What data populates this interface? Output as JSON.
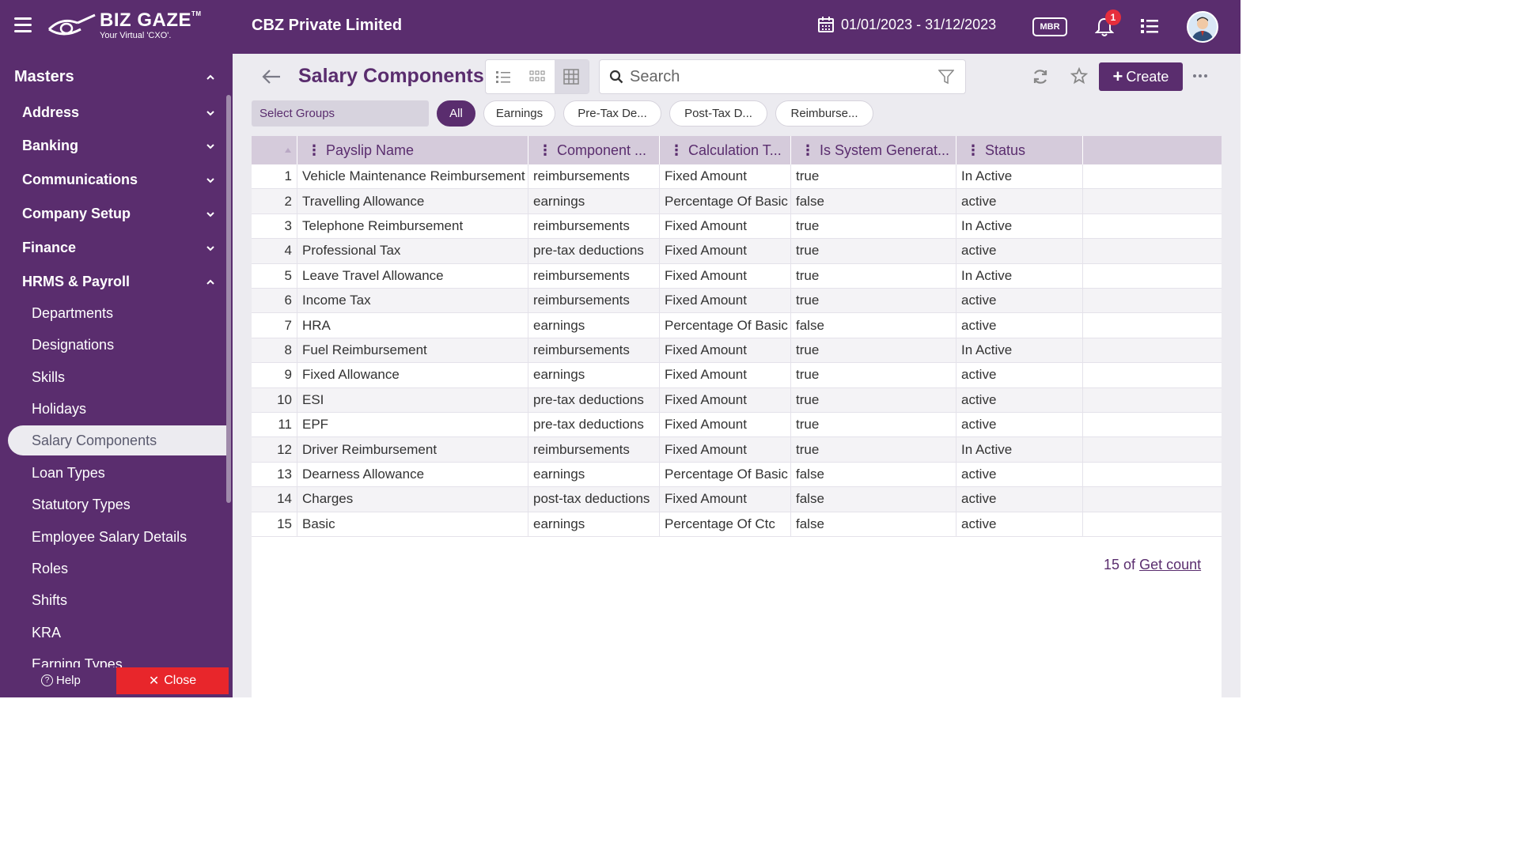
{
  "header": {
    "logo_name": "BIZ GAZE",
    "logo_tm": "TM",
    "logo_tagline": "Your Virtual 'CXO'.",
    "company": "CBZ Private Limited",
    "date_range": "01/01/2023 - 31/12/2023",
    "mbr_label": "MBR",
    "notification_count": "1"
  },
  "sidebar": {
    "section": "Masters",
    "groups": [
      "Address",
      "Banking",
      "Communications",
      "Company Setup",
      "Finance",
      "HRMS & Payroll"
    ],
    "items": [
      "Departments",
      "Designations",
      "Skills",
      "Holidays",
      "Salary Components",
      "Loan Types",
      "Statutory Types",
      "Employee Salary Details",
      "Roles",
      "Shifts",
      "KRA",
      "Earning Types"
    ],
    "active_item": "Salary Components",
    "help_label": "Help",
    "close_label": "Close"
  },
  "page": {
    "title": "Salary Components",
    "search_placeholder": "Search",
    "create_label": "Create",
    "select_groups": "Select Groups",
    "chips": [
      "All",
      "Earnings",
      "Pre-Tax De...",
      "Post-Tax D...",
      "Reimburse..."
    ],
    "active_chip": "All"
  },
  "table": {
    "columns": [
      "Payslip Name",
      "Component ...",
      "Calculation T...",
      "Is System Generat...",
      "Status"
    ],
    "rows": [
      [
        "1",
        "Vehicle Maintenance Reimbursement",
        "reimbursements",
        "Fixed Amount",
        "true",
        "In Active"
      ],
      [
        "2",
        "Travelling Allowance",
        "earnings",
        "Percentage Of Basic",
        "false",
        "active"
      ],
      [
        "3",
        "Telephone Reimbursement",
        "reimbursements",
        "Fixed Amount",
        "true",
        "In Active"
      ],
      [
        "4",
        "Professional Tax",
        "pre-tax deductions",
        "Fixed Amount",
        "true",
        "active"
      ],
      [
        "5",
        "Leave Travel Allowance",
        "reimbursements",
        "Fixed Amount",
        "true",
        "In Active"
      ],
      [
        "6",
        "Income Tax",
        "reimbursements",
        "Fixed Amount",
        "true",
        "active"
      ],
      [
        "7",
        "HRA",
        "earnings",
        "Percentage Of Basic",
        "false",
        "active"
      ],
      [
        "8",
        "Fuel Reimbursement",
        "reimbursements",
        "Fixed Amount",
        "true",
        "In Active"
      ],
      [
        "9",
        "Fixed Allowance",
        "earnings",
        "Fixed Amount",
        "true",
        "active"
      ],
      [
        "10",
        "ESI",
        "pre-tax deductions",
        "Fixed Amount",
        "true",
        "active"
      ],
      [
        "11",
        "EPF",
        "pre-tax deductions",
        "Fixed Amount",
        "true",
        "active"
      ],
      [
        "12",
        "Driver Reimbursement",
        "reimbursements",
        "Fixed Amount",
        "true",
        "In Active"
      ],
      [
        "13",
        "Dearness Allowance",
        "earnings",
        "Percentage Of Basic",
        "false",
        "active"
      ],
      [
        "14",
        "Charges",
        "post-tax deductions",
        "Fixed Amount",
        "false",
        "active"
      ],
      [
        "15",
        "Basic",
        "earnings",
        "Percentage Of Ctc",
        "false",
        "active"
      ]
    ],
    "count_prefix": "15 of",
    "count_link": "Get count"
  },
  "colors": {
    "brand": "#5a2d6e",
    "close": "#e8262b",
    "badge": "#e62e3c"
  }
}
